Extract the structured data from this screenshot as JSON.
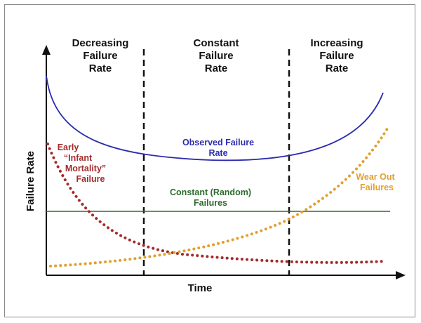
{
  "regions": [
    {
      "line1": "Decreasing",
      "line2": "Failure",
      "line3": "Rate"
    },
    {
      "line1": "Constant",
      "line2": "Failure",
      "line3": "Rate"
    },
    {
      "line1": "Increasing",
      "line2": "Failure",
      "line3": "Rate"
    }
  ],
  "axes": {
    "y_label": "Failure Rate",
    "x_label": "Time"
  },
  "curves": {
    "observed": {
      "line1": "Observed Failure",
      "line2": "Rate",
      "color": "#2c2cae"
    },
    "early": {
      "line1": "Early",
      "line2": "“Infant",
      "line3": "Mortality”",
      "line4": "Failure",
      "color": "#a32b2b"
    },
    "constant": {
      "line1": "Constant (Random)",
      "line2": "Failures",
      "color": "#2e6b2e"
    },
    "wearout": {
      "line1": "Wear Out",
      "line2": "Failures",
      "color": "#e0a030"
    }
  }
}
